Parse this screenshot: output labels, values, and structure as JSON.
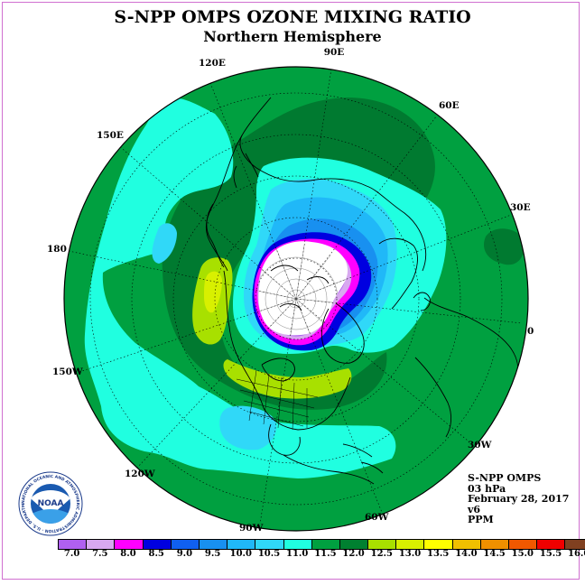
{
  "title": "S-NPP OMPS OZONE MIXING RATIO",
  "subtitle": "Northern Hemisphere",
  "longitude_labels": {
    "lon_90E": "90E",
    "lon_60E": "60E",
    "lon_30E": "30E",
    "lon_0": "0",
    "lon_30W": "30W",
    "lon_60W": "60W",
    "lon_90W": "90W",
    "lon_120W": "120W",
    "lon_150W": "150W",
    "lon_180": "180",
    "lon_150E": "150E",
    "lon_120E": "120E"
  },
  "info": {
    "instrument": "S-NPP OMPS",
    "level": "03 hPa",
    "date": "February 28, 2017",
    "version": "v6",
    "units": "PPM"
  },
  "colorbar": {
    "ticks": [
      "7.0",
      "7.5",
      "8.0",
      "8.5",
      "9.0",
      "9.5",
      "10.0",
      "10.5",
      "11.0",
      "11.5",
      "12.0",
      "12.5",
      "13.0",
      "13.5",
      "14.0",
      "14.5",
      "15.0",
      "15.5",
      "16.0"
    ],
    "colors": [
      "#b060f0",
      "#d8a8f0",
      "#ff00ff",
      "#0000e0",
      "#1060f0",
      "#1890f0",
      "#20b8f8",
      "#30d8f8",
      "#20ffe0",
      "#00a040",
      "#008030",
      "#a8e000",
      "#d8f000",
      "#ffff00",
      "#f0c000",
      "#f09000",
      "#f05800",
      "#f00000",
      "#804020"
    ]
  },
  "logo": {
    "acronym": "NOAA",
    "ring_text": "NATIONAL OCEANIC AND ATMOSPHERIC ADMINISTRATION · U.S. DEPARTMENT OF COMMERCE"
  },
  "palette": {
    "field_base": "#00a040",
    "field_dark": "#007a30",
    "cyan_band": "#20ffe0",
    "light_blue": "#30d8f8",
    "mid_blue": "#20b8f8",
    "blue": "#1890f0",
    "deep_blue": "#0000e0",
    "magenta": "#ff00ff",
    "lavender": "#d8a8f0",
    "purple": "#b060f0",
    "yellow_green": "#a8e000"
  }
}
